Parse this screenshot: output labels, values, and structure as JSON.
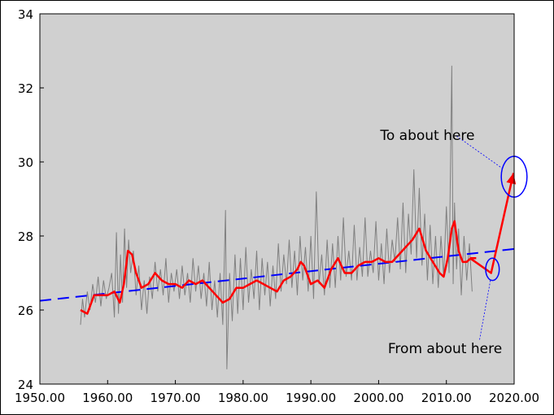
{
  "chart_data": {
    "type": "line",
    "xlim": [
      1950,
      2020
    ],
    "ylim": [
      24,
      34
    ],
    "x_ticks": [
      1950,
      1960,
      1970,
      1980,
      1990,
      2000,
      2010,
      2020
    ],
    "x_tick_labels": [
      "1950.00",
      "1960.00",
      "1970.00",
      "1980.00",
      "1990.00",
      "2000.00",
      "2010.00",
      "2020.00"
    ],
    "y_ticks": [
      24,
      26,
      28,
      30,
      32,
      34
    ],
    "y_tick_labels": [
      "24",
      "26",
      "28",
      "30",
      "32",
      "34"
    ],
    "grid": false,
    "colors": {
      "plot_background": "#d0d0d0",
      "raw_series": "#808080",
      "smoothed_series": "#ff0000",
      "trend_line": "#0000ff",
      "annotation_arrow": "#ff0000",
      "annotation_ellipse": "#0000ff"
    },
    "series": [
      {
        "style": "thin gray line (raw monthly data)",
        "x": [
          1956.0,
          1956.3,
          1956.6,
          1957.0,
          1957.4,
          1957.8,
          1958.2,
          1958.6,
          1959.0,
          1959.4,
          1959.8,
          1960.2,
          1960.6,
          1961.0,
          1961.3,
          1961.6,
          1961.9,
          1962.2,
          1962.5,
          1962.8,
          1963.1,
          1963.4,
          1963.8,
          1964.2,
          1964.6,
          1965.0,
          1965.4,
          1965.8,
          1966.2,
          1966.6,
          1967.0,
          1967.4,
          1967.8,
          1968.2,
          1968.6,
          1969.0,
          1969.4,
          1969.8,
          1970.2,
          1970.6,
          1971.0,
          1971.4,
          1971.8,
          1972.2,
          1972.6,
          1973.0,
          1973.4,
          1973.8,
          1974.2,
          1974.6,
          1975.0,
          1975.4,
          1975.8,
          1976.2,
          1976.6,
          1977.0,
          1977.4,
          1977.6,
          1978.0,
          1978.4,
          1978.8,
          1979.2,
          1979.6,
          1980.0,
          1980.4,
          1980.8,
          1981.2,
          1981.6,
          1982.0,
          1982.4,
          1982.8,
          1983.2,
          1983.6,
          1984.0,
          1984.4,
          1984.8,
          1985.2,
          1985.6,
          1986.0,
          1986.4,
          1986.8,
          1987.2,
          1987.6,
          1988.0,
          1988.4,
          1988.8,
          1989.2,
          1989.6,
          1990.0,
          1990.4,
          1990.8,
          1991.2,
          1991.6,
          1992.0,
          1992.4,
          1992.8,
          1993.2,
          1993.6,
          1994.0,
          1994.4,
          1994.8,
          1995.2,
          1995.6,
          1996.0,
          1996.4,
          1996.8,
          1997.2,
          1997.6,
          1998.0,
          1998.4,
          1998.8,
          1999.2,
          1999.6,
          2000.0,
          2000.4,
          2000.8,
          2001.2,
          2001.6,
          2002.0,
          2002.4,
          2002.8,
          2003.2,
          2003.6,
          2004.0,
          2004.4,
          2004.8,
          2005.2,
          2005.6,
          2006.0,
          2006.4,
          2006.8,
          2007.2,
          2007.6,
          2008.0,
          2008.4,
          2008.8,
          2009.2,
          2009.6,
          2010.0,
          2010.4,
          2010.8,
          2011.0,
          2011.2,
          2011.5,
          2011.8,
          2012.2,
          2012.6,
          2013.0,
          2013.4,
          2013.8
        ],
        "values": [
          25.6,
          26.3,
          25.8,
          26.5,
          26.0,
          26.7,
          26.2,
          26.9,
          26.1,
          26.8,
          26.3,
          26.6,
          27.0,
          25.8,
          28.1,
          25.9,
          27.5,
          26.2,
          28.2,
          26.6,
          27.9,
          27.0,
          27.6,
          26.4,
          27.2,
          26.0,
          26.8,
          25.9,
          26.9,
          26.3,
          27.3,
          26.5,
          27.1,
          26.4,
          27.4,
          26.2,
          27.0,
          26.5,
          27.1,
          26.3,
          27.2,
          26.4,
          27.0,
          26.2,
          27.4,
          26.5,
          27.2,
          26.3,
          27.0,
          26.1,
          27.3,
          26.0,
          26.8,
          25.8,
          27.0,
          25.6,
          28.7,
          24.4,
          27.0,
          25.7,
          27.5,
          25.9,
          27.4,
          26.0,
          27.7,
          26.2,
          27.1,
          26.3,
          27.6,
          26.0,
          27.4,
          26.4,
          27.3,
          26.1,
          27.2,
          26.3,
          27.8,
          26.5,
          27.5,
          26.7,
          27.9,
          26.6,
          27.6,
          26.4,
          28.0,
          26.8,
          27.7,
          26.5,
          28.0,
          26.3,
          29.2,
          26.7,
          27.5,
          26.4,
          27.9,
          26.6,
          27.8,
          26.6,
          28.0,
          26.8,
          28.5,
          26.9,
          27.6,
          26.8,
          28.3,
          26.8,
          27.7,
          26.9,
          28.5,
          26.9,
          27.6,
          27.0,
          28.4,
          26.8,
          27.8,
          26.7,
          28.2,
          27.0,
          27.9,
          27.3,
          28.5,
          27.1,
          28.9,
          27.0,
          28.6,
          27.5,
          29.8,
          27.4,
          29.3,
          27.2,
          28.6,
          26.8,
          28.3,
          26.7,
          28.0,
          26.6,
          28.0,
          26.9,
          28.8,
          27.0,
          32.6,
          26.7,
          28.9,
          27.1,
          28.2,
          26.4,
          28.0,
          26.8,
          27.8,
          26.5
        ]
      },
      {
        "style": "thick red line (smoothed)",
        "x": [
          1956.0,
          1957.0,
          1958.0,
          1959.0,
          1960.0,
          1961.0,
          1961.8,
          1962.4,
          1963.0,
          1963.6,
          1964.2,
          1965.0,
          1966.0,
          1967.0,
          1968.0,
          1969.0,
          1970.0,
          1971.0,
          1972.0,
          1973.0,
          1974.0,
          1975.0,
          1976.0,
          1977.0,
          1978.0,
          1979.0,
          1980.0,
          1981.0,
          1982.0,
          1983.0,
          1984.0,
          1985.0,
          1986.0,
          1987.0,
          1988.0,
          1988.5,
          1989.0,
          1990.0,
          1991.0,
          1992.0,
          1993.0,
          1994.0,
          1995.0,
          1996.0,
          1997.0,
          1998.0,
          1999.0,
          2000.0,
          2001.0,
          2002.0,
          2003.0,
          2004.0,
          2005.0,
          2006.0,
          2007.0,
          2008.0,
          2009.0,
          2009.6,
          2010.2,
          2010.8,
          2011.2,
          2011.8,
          2012.4,
          2013.0,
          2013.6,
          2014.4
        ],
        "values": [
          26.0,
          25.9,
          26.4,
          26.4,
          26.4,
          26.5,
          26.2,
          26.7,
          27.6,
          27.5,
          27.0,
          26.6,
          26.7,
          27.0,
          26.8,
          26.7,
          26.7,
          26.6,
          26.8,
          26.7,
          26.8,
          26.6,
          26.4,
          26.2,
          26.3,
          26.6,
          26.6,
          26.7,
          26.8,
          26.7,
          26.6,
          26.5,
          26.8,
          26.9,
          27.1,
          27.3,
          27.2,
          26.7,
          26.8,
          26.6,
          27.1,
          27.4,
          27.0,
          27.0,
          27.2,
          27.3,
          27.3,
          27.4,
          27.3,
          27.3,
          27.5,
          27.7,
          27.9,
          28.2,
          27.6,
          27.3,
          27.0,
          26.9,
          27.4,
          28.2,
          28.4,
          27.6,
          27.3,
          27.3,
          27.4,
          27.4
        ]
      }
    ],
    "trend_line": {
      "style": "dashed blue",
      "x": [
        1950,
        2020
      ],
      "values": [
        26.25,
        27.65
      ]
    },
    "annotations": [
      {
        "text": "From about here",
        "ellipse_center": [
          2016.8,
          27.1
        ],
        "ellipse_radius": [
          1.0,
          0.3
        ],
        "label_anchor": [
          2009.8,
          24.95
        ],
        "leader_from": [
          2014.9,
          25.2
        ]
      },
      {
        "text": "To about here",
        "ellipse_center": [
          2020.0,
          29.6
        ],
        "ellipse_radius": [
          1.9,
          0.55
        ],
        "label_anchor": [
          2007.2,
          30.7
        ],
        "leader_from": [
          2011.5,
          30.7
        ]
      }
    ],
    "arrow": {
      "x": [
        2013.5,
        2016.6,
        2019.9
      ],
      "values": [
        27.4,
        27.0,
        29.7
      ]
    }
  }
}
